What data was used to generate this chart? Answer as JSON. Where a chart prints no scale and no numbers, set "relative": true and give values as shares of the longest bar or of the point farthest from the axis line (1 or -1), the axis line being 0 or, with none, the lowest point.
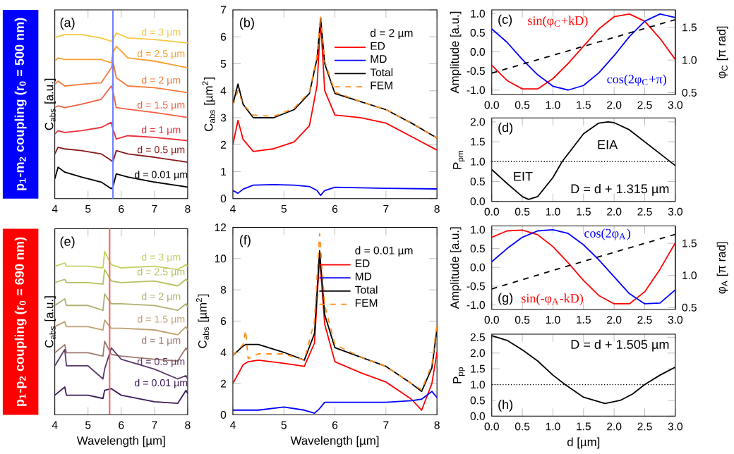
{
  "chart_data": [
    {
      "type": "line",
      "title": "(a)",
      "ylabel": "C$_{abs}$ [a.u.]",
      "relative": true,
      "tick_labels": "x",
      "xlim": [
        4,
        8
      ],
      "xticks": [
        4,
        5,
        6,
        7,
        8
      ],
      "annotations": [
        "p$_{1}$-m$_{2}$ coupling (r$_{0}$ = 500 nm)"
      ],
      "ref_lines": [
        {
          "axis": "x",
          "value": 5.75,
          "color": "#7080ff"
        }
      ],
      "x": [
        4,
        4.1,
        4.3,
        4.8,
        5.4,
        5.7,
        5.75,
        5.85,
        6.2,
        7,
        8
      ],
      "series": [
        {
          "name": "d = 3 µm",
          "color": "#f5c842",
          "values": [
            0.97,
            0.98,
            0.99,
            0.99,
            0.97,
            0.95,
            0.96,
            1.0,
            0.97,
            0.96,
            0.94
          ]
        },
        {
          "name": "d = 2.5 µm",
          "color": "#f5a030",
          "values": [
            0.83,
            0.85,
            0.84,
            0.84,
            0.84,
            0.82,
            0.88,
            0.92,
            0.85,
            0.83,
            0.79
          ]
        },
        {
          "name": "d = 2 µm",
          "color": "#f47a3a",
          "values": [
            0.69,
            0.71,
            0.68,
            0.69,
            0.7,
            0.79,
            0.83,
            0.73,
            0.68,
            0.67,
            0.64
          ]
        },
        {
          "name": "d = 1.5 µm",
          "color": "#f06040",
          "values": [
            0.55,
            0.56,
            0.55,
            0.57,
            0.6,
            0.68,
            0.65,
            0.55,
            0.54,
            0.52,
            0.49
          ]
        },
        {
          "name": "d = 1 µm",
          "color": "#e8303a",
          "values": [
            0.39,
            0.41,
            0.4,
            0.41,
            0.43,
            0.46,
            0.42,
            0.36,
            0.38,
            0.37,
            0.35
          ]
        },
        {
          "name": "d = 0.5 µm",
          "color": "#8b1a1a",
          "values": [
            0.27,
            0.31,
            0.3,
            0.29,
            0.27,
            0.23,
            0.22,
            0.29,
            0.27,
            0.25,
            0.22
          ]
        },
        {
          "name": "d = 0.01 µm",
          "color": "#000000",
          "values": [
            0.12,
            0.19,
            0.16,
            0.13,
            0.1,
            0.06,
            0.07,
            0.15,
            0.13,
            0.1,
            0.07
          ]
        }
      ]
    },
    {
      "type": "line",
      "title": "(b)",
      "ylabel": "C$_{abs}$ [µm$^{2}$]",
      "legend": "top right",
      "legend_title": "d = 2 µm",
      "xlim": [
        4,
        8
      ],
      "xticks": [
        4,
        5,
        6,
        7,
        8
      ],
      "ylim": [
        0,
        7
      ],
      "yticks": [
        0,
        1,
        2,
        3,
        4,
        5,
        6,
        7
      ],
      "x": [
        4,
        4.1,
        4.2,
        4.4,
        4.8,
        5.2,
        5.5,
        5.65,
        5.72,
        5.8,
        6,
        6.5,
        7,
        7.5,
        8
      ],
      "series": [
        {
          "name": "ED",
          "color": "#ff0000",
          "values": [
            2.0,
            2.9,
            2.2,
            1.75,
            1.85,
            2.1,
            2.7,
            4.2,
            6.6,
            4.0,
            3.1,
            3.0,
            2.8,
            2.3,
            1.8
          ]
        },
        {
          "name": "MD",
          "color": "#0000ff",
          "values": [
            0.3,
            0.2,
            0.35,
            0.5,
            0.52,
            0.5,
            0.45,
            0.3,
            0.12,
            0.3,
            0.42,
            0.4,
            0.38,
            0.37,
            0.36
          ]
        },
        {
          "name": "Total",
          "color": "#000000",
          "values": [
            3.5,
            4.25,
            3.5,
            3.0,
            3.0,
            3.3,
            3.9,
            5.2,
            6.7,
            5.0,
            3.9,
            3.6,
            3.3,
            2.8,
            2.25
          ]
        },
        {
          "name": "FEM",
          "color": "#ff8c1a",
          "line_style": "dashed",
          "values": [
            3.45,
            4.0,
            3.5,
            3.1,
            3.05,
            3.35,
            3.95,
            5.3,
            6.75,
            5.1,
            3.95,
            3.6,
            3.3,
            2.8,
            2.25
          ]
        }
      ]
    },
    {
      "type": "line",
      "title": "(c)",
      "ylabel": "Amplitude [a.u.]",
      "y2label": "φ$_{C}$ [π rad]",
      "xlim": [
        0,
        3
      ],
      "xticks": [
        {
          "value": 0,
          "label": "0.0"
        },
        {
          "value": 0.5,
          "label": "0.5"
        },
        {
          "value": 1,
          "label": "1.0"
        },
        {
          "value": 1.5,
          "label": "1.5"
        },
        {
          "value": 2,
          "label": "2.0"
        },
        {
          "value": 2.5,
          "label": "2.5"
        },
        {
          "value": 3,
          "label": "3.0"
        }
      ],
      "ylim": [
        -1.12,
        1.1
      ],
      "yticks": [
        {
          "value": -1,
          "label": "-1.0"
        },
        {
          "value": -0.5,
          "label": "-0.5"
        },
        {
          "value": 0,
          "label": "0.0"
        },
        {
          "value": 0.5,
          "label": "0.5"
        },
        {
          "value": 1,
          "label": "1.0"
        }
      ],
      "y2lim": [
        0.47,
        1.77
      ],
      "y2ticks": [
        {
          "value": 0.5,
          "label": "0.5"
        },
        {
          "value": 1,
          "label": "1.0"
        },
        {
          "value": 1.5,
          "label": "1.5"
        }
      ],
      "annotations": [
        "sin(φ$_{C}$+kD)",
        "cos(2φ$_{C}$+π)"
      ],
      "x": [
        0,
        0.25,
        0.5,
        0.75,
        1,
        1.25,
        1.5,
        1.75,
        2,
        2.25,
        2.5,
        2.75,
        3
      ],
      "series": [
        {
          "color": "#ff0000",
          "values": [
            -0.35,
            -0.75,
            -0.97,
            -0.97,
            -0.7,
            -0.3,
            0.15,
            0.6,
            0.92,
            0.99,
            0.8,
            0.35,
            -0.2
          ]
        },
        {
          "color": "#0000ff",
          "values": [
            0.6,
            0.25,
            -0.2,
            -0.6,
            -0.9,
            -1.0,
            -0.88,
            -0.55,
            -0.1,
            0.4,
            0.8,
            0.99,
            0.9
          ]
        },
        {
          "color": "#000000",
          "line_style": "dashed",
          "axis": "y2",
          "x": [
            0,
            1.5,
            3
          ],
          "values": [
            0.8,
            1.21,
            1.62
          ]
        }
      ]
    },
    {
      "type": "line",
      "title": "(d)",
      "ylabel": "P$_{pm}$",
      "xlim": [
        0,
        3
      ],
      "xticks": [
        {
          "value": 0,
          "label": "0.0"
        },
        {
          "value": 0.5,
          "label": "0.5"
        },
        {
          "value": 1,
          "label": "1.0"
        },
        {
          "value": 1.5,
          "label": "1.5"
        },
        {
          "value": 2,
          "label": "2.0"
        },
        {
          "value": 2.5,
          "label": "2.5"
        },
        {
          "value": 3,
          "label": "3.0"
        }
      ],
      "ylim": [
        0,
        2.1
      ],
      "yticks": [
        {
          "value": 0,
          "label": "0.0"
        },
        {
          "value": 0.5,
          "label": "0.5"
        },
        {
          "value": 1,
          "label": "1.0"
        },
        {
          "value": 1.5,
          "label": "1.5"
        },
        {
          "value": 2,
          "label": "2.0"
        }
      ],
      "ref_lines": [
        {
          "axis": "y",
          "value": 1,
          "color": "#000000",
          "line_style": "dotted"
        }
      ],
      "annotations": [
        "EIT",
        "EIA",
        "D = d + 1.315 µm"
      ],
      "x": [
        0,
        0.25,
        0.5,
        0.6,
        0.75,
        1,
        1.15,
        1.25,
        1.5,
        1.75,
        1.9,
        2,
        2.25,
        2.5,
        2.75,
        3
      ],
      "series": [
        {
          "color": "#000000",
          "values": [
            0.8,
            0.45,
            0.12,
            0.05,
            0.12,
            0.6,
            1.0,
            1.2,
            1.7,
            1.97,
            2.0,
            1.98,
            1.8,
            1.5,
            1.2,
            0.9
          ]
        }
      ]
    },
    {
      "type": "line",
      "title": "(e)",
      "ylabel": "C$_{abs}$ [a.u.]",
      "xlabel": "Wavelength [µm]",
      "relative": true,
      "tick_labels": "x",
      "xlim": [
        4,
        8
      ],
      "xticks": [
        4,
        5,
        6,
        7,
        8
      ],
      "annotations": [
        "p$_{1}$-p$_{2}$ coupling (r$_{0}$ = 690 nm)"
      ],
      "ref_lines": [
        {
          "axis": "x",
          "value": 5.65,
          "color": "#ff6060"
        }
      ],
      "x": [
        4,
        4.3,
        4.35,
        5,
        5.45,
        5.5,
        5.7,
        6,
        7,
        7.7,
        7.95,
        8
      ],
      "series": [
        {
          "name": "d = 3 µm",
          "color": "#c8d060",
          "values": [
            0.91,
            0.93,
            0.91,
            0.91,
            0.9,
            1.0,
            0.92,
            0.9,
            0.91,
            0.89,
            0.92,
            0.91
          ]
        },
        {
          "name": "d = 2.5 µm",
          "color": "#b8c060",
          "values": [
            0.81,
            0.83,
            0.81,
            0.81,
            0.8,
            0.89,
            0.82,
            0.81,
            0.82,
            0.79,
            0.83,
            0.82
          ]
        },
        {
          "name": "d = 2 µm",
          "color": "#b0b070",
          "values": [
            0.67,
            0.71,
            0.67,
            0.67,
            0.64,
            0.74,
            0.68,
            0.68,
            0.67,
            0.64,
            0.68,
            0.66
          ]
        },
        {
          "name": "d = 1.5 µm",
          "color": "#c0a070",
          "values": [
            0.54,
            0.57,
            0.54,
            0.54,
            0.52,
            0.58,
            0.53,
            0.53,
            0.52,
            0.49,
            0.54,
            0.52
          ]
        },
        {
          "name": "d = 1 µm",
          "color": "#a07870",
          "values": [
            0.38,
            0.43,
            0.38,
            0.38,
            0.36,
            0.45,
            0.37,
            0.36,
            0.34,
            0.33,
            0.41,
            0.39
          ]
        },
        {
          "name": "d = 0.5 µm",
          "color": "#5a3a6a",
          "values": [
            0.3,
            0.4,
            0.3,
            0.3,
            0.22,
            0.28,
            0.41,
            0.34,
            0.28,
            0.22,
            0.24,
            0.22
          ]
        },
        {
          "name": "d = 0.01 µm",
          "color": "#3c1a5a",
          "values": [
            0.12,
            0.17,
            0.12,
            0.12,
            0.1,
            0.15,
            0.16,
            0.12,
            0.08,
            0.07,
            0.15,
            0.13
          ]
        }
      ]
    },
    {
      "type": "line",
      "title": "(f)",
      "ylabel": "C$_{abs}$ [µm$^{2}$]",
      "xlabel": "Wavelength [µm]",
      "legend": "top right",
      "legend_title": "d = 0.01 µm",
      "xlim": [
        4,
        8
      ],
      "xticks": [
        4,
        5,
        6,
        7,
        8
      ],
      "ylim": [
        0,
        12
      ],
      "yticks": [
        0,
        2,
        4,
        6,
        8,
        10,
        12
      ],
      "x": [
        4,
        4.2,
        4.25,
        4.3,
        4.5,
        5,
        5.4,
        5.6,
        5.7,
        5.8,
        6,
        6.5,
        7,
        7.5,
        7.7,
        7.9,
        8
      ],
      "series": [
        {
          "name": "ED",
          "color": "#ff0000",
          "values": [
            2.0,
            3.2,
            3.3,
            3.4,
            3.5,
            3.3,
            3.1,
            4.6,
            10.2,
            5.8,
            3.4,
            2.7,
            2.1,
            1.0,
            0.3,
            2.0,
            4.0
          ]
        },
        {
          "name": "MD",
          "color": "#0000ff",
          "values": [
            0.3,
            0.3,
            0.3,
            0.3,
            0.3,
            0.5,
            0.3,
            0.1,
            0.4,
            0.8,
            0.8,
            0.8,
            0.8,
            0.9,
            1.0,
            1.5,
            1.1
          ]
        },
        {
          "name": "Total",
          "color": "#000000",
          "values": [
            3.8,
            4.4,
            4.5,
            4.5,
            4.5,
            4.0,
            3.5,
            5.2,
            10.5,
            6.4,
            4.3,
            3.7,
            3.1,
            2.0,
            1.5,
            3.0,
            5.5
          ]
        },
        {
          "name": "FEM",
          "color": "#ff8c1a",
          "line_style": "dashed",
          "values": [
            3.8,
            4.5,
            5.4,
            3.6,
            3.9,
            3.9,
            3.5,
            6.0,
            11.6,
            7.0,
            4.5,
            3.7,
            3.1,
            2.0,
            1.6,
            3.2,
            5.8
          ]
        }
      ]
    },
    {
      "type": "line",
      "title": "(g)",
      "ylabel": "Amplitude [a.u.]",
      "y2label": "φ$_{A}$ [π rad]",
      "xlim": [
        0,
        3
      ],
      "xticks": [
        {
          "value": 0,
          "label": "0.0"
        },
        {
          "value": 0.5,
          "label": "0.5"
        },
        {
          "value": 1,
          "label": "1.0"
        },
        {
          "value": 1.5,
          "label": "1.5"
        },
        {
          "value": 2,
          "label": "2.0"
        },
        {
          "value": 2.5,
          "label": "2.5"
        },
        {
          "value": 3,
          "label": "3.0"
        }
      ],
      "ylim": [
        -1.12,
        1.1
      ],
      "yticks": [
        {
          "value": -1,
          "label": "-1.0"
        },
        {
          "value": -0.5,
          "label": "-0.5"
        },
        {
          "value": 0,
          "label": "0.0"
        },
        {
          "value": 0.5,
          "label": "0.5"
        },
        {
          "value": 1,
          "label": "1.0"
        }
      ],
      "y2lim": [
        0.47,
        1.77
      ],
      "y2ticks": [
        {
          "value": 0.5,
          "label": "0.5"
        },
        {
          "value": 1,
          "label": "1.0"
        },
        {
          "value": 1.5,
          "label": "1.5"
        }
      ],
      "annotations": [
        "sin(-φ$_{A}$-kD)",
        "cos(2φ$_{A}$)"
      ],
      "x": [
        0,
        0.25,
        0.5,
        0.75,
        1,
        1.25,
        1.5,
        1.75,
        2,
        2.25,
        2.5,
        2.75,
        3
      ],
      "series": [
        {
          "color": "#ff0000",
          "values": [
            0.8,
            0.97,
            0.99,
            0.87,
            0.55,
            0.12,
            -0.35,
            -0.75,
            -0.97,
            -0.97,
            -0.65,
            -0.05,
            0.65
          ]
        },
        {
          "color": "#0000ff",
          "values": [
            0.15,
            0.5,
            0.8,
            0.97,
            1.0,
            0.9,
            0.6,
            0.2,
            -0.25,
            -0.7,
            -0.97,
            -0.95,
            -0.6
          ]
        },
        {
          "color": "#000000",
          "line_style": "dashed",
          "axis": "y2",
          "x": [
            0,
            1.5,
            3
          ],
          "values": [
            0.79,
            1.22,
            1.64
          ]
        }
      ]
    },
    {
      "type": "line",
      "title": "(h)",
      "ylabel": "P$_{pp}$",
      "xlabel": "d [µm]",
      "xlim": [
        0,
        3
      ],
      "xticks": [
        {
          "value": 0,
          "label": "0.0"
        },
        {
          "value": 0.5,
          "label": "0.5"
        },
        {
          "value": 1,
          "label": "1.0"
        },
        {
          "value": 1.5,
          "label": "1.5"
        },
        {
          "value": 2,
          "label": "2.0"
        },
        {
          "value": 2.5,
          "label": "2.5"
        },
        {
          "value": 3,
          "label": "3.0"
        }
      ],
      "ylim": [
        0,
        2.6
      ],
      "yticks": [
        {
          "value": 0,
          "label": "0.0"
        },
        {
          "value": 0.5,
          "label": "0.5"
        },
        {
          "value": 1,
          "label": "1.0"
        },
        {
          "value": 1.5,
          "label": "1.5"
        },
        {
          "value": 2,
          "label": "2.0"
        },
        {
          "value": 2.5,
          "label": "2.5"
        }
      ],
      "ref_lines": [
        {
          "axis": "y",
          "value": 1,
          "color": "#000000",
          "line_style": "dotted"
        }
      ],
      "annotations": [
        "D = d + 1.505 µm"
      ],
      "x": [
        0,
        0.25,
        0.5,
        0.75,
        1,
        1.2,
        1.5,
        1.85,
        2.1,
        2.3,
        2.5,
        2.75,
        3
      ],
      "series": [
        {
          "color": "#000000",
          "values": [
            2.55,
            2.4,
            2.1,
            1.75,
            1.3,
            1.0,
            0.6,
            0.4,
            0.5,
            0.7,
            1.0,
            1.3,
            1.55
          ]
        }
      ]
    }
  ]
}
